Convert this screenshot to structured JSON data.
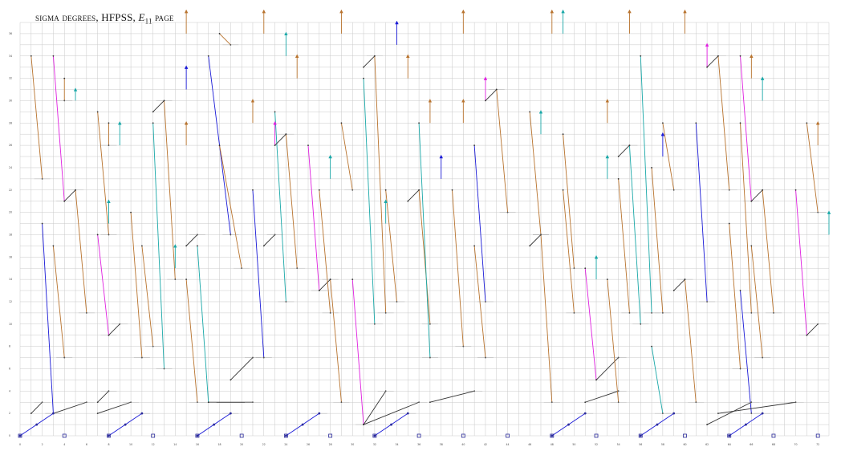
{
  "title": {
    "prefix": "sigma degrees, HFPSS, ",
    "symbol": "E",
    "subscript": "11",
    "suffix": " page"
  },
  "chart_data": {
    "type": "scatter",
    "xlim": [
      0,
      73
    ],
    "ylim": [
      0,
      37
    ],
    "grid": true,
    "x_ticks": [
      0,
      2,
      4,
      6,
      8,
      10,
      12,
      14,
      16,
      18,
      20,
      22,
      24,
      26,
      28,
      30,
      32,
      34,
      36,
      38,
      40,
      42,
      44,
      46,
      48,
      50,
      52,
      54,
      56,
      58,
      60,
      62,
      64,
      66,
      68,
      70,
      72
    ],
    "y_ticks": [
      0,
      2,
      4,
      6,
      8,
      10,
      12,
      14,
      16,
      18,
      20,
      22,
      24,
      26,
      28,
      30,
      32,
      34,
      36
    ],
    "colors": {
      "orange": "#b8732e",
      "blue": "#1a1ad6",
      "teal": "#1aa8a8",
      "magenta": "#e020e0",
      "black": "#333333",
      "grid": "#c9c9c9",
      "dot": "#2a2a9a"
    },
    "segments": [
      {
        "c": "orange",
        "x1": 1,
        "y1": 34,
        "x2": 2,
        "y2": 23
      },
      {
        "c": "orange",
        "x1": 4,
        "y1": 32,
        "x2": 4,
        "y2": 30
      },
      {
        "c": "teal",
        "x1": 5,
        "y1": 30,
        "x2": 5,
        "y2": 31,
        "arrow": true
      },
      {
        "c": "magenta",
        "x1": 3,
        "y1": 34,
        "x2": 4,
        "y2": 21
      },
      {
        "c": "black",
        "x1": 4,
        "y1": 21,
        "x2": 5,
        "y2": 22
      },
      {
        "c": "orange",
        "x1": 5,
        "y1": 22,
        "x2": 6,
        "y2": 11
      },
      {
        "c": "blue",
        "x1": 2,
        "y1": 19,
        "x2": 3,
        "y2": 2
      },
      {
        "c": "orange",
        "x1": 3,
        "y1": 17,
        "x2": 4,
        "y2": 7
      },
      {
        "c": "black",
        "x1": 1,
        "y1": 2,
        "x2": 2,
        "y2": 3
      },
      {
        "c": "black",
        "x1": 3,
        "y1": 2,
        "x2": 6,
        "y2": 3
      },
      {
        "c": "orange",
        "x1": 7,
        "y1": 29,
        "x2": 8,
        "y2": 18
      },
      {
        "c": "orange",
        "x1": 8,
        "y1": 28,
        "x2": 8,
        "y2": 26
      },
      {
        "c": "teal",
        "x1": 9,
        "y1": 26,
        "x2": 9,
        "y2": 28,
        "arrow": true
      },
      {
        "c": "magenta",
        "x1": 7,
        "y1": 18,
        "x2": 8,
        "y2": 9
      },
      {
        "c": "black",
        "x1": 8,
        "y1": 9,
        "x2": 9,
        "y2": 10
      },
      {
        "c": "teal",
        "x1": 8,
        "y1": 19,
        "x2": 8,
        "y2": 21,
        "arrow": true
      },
      {
        "c": "black",
        "x1": 7,
        "y1": 2,
        "x2": 10,
        "y2": 3
      },
      {
        "c": "black",
        "x1": 7,
        "y1": 3,
        "x2": 8,
        "y2": 4
      },
      {
        "c": "orange",
        "x1": 10,
        "y1": 20,
        "x2": 11,
        "y2": 7
      },
      {
        "c": "orange",
        "x1": 11,
        "y1": 17,
        "x2": 12,
        "y2": 8
      },
      {
        "c": "teal",
        "x1": 12,
        "y1": 28,
        "x2": 13,
        "y2": 6
      },
      {
        "c": "black",
        "x1": 12,
        "y1": 29,
        "x2": 13,
        "y2": 30
      },
      {
        "c": "orange",
        "x1": 13,
        "y1": 30,
        "x2": 14,
        "y2": 14
      },
      {
        "c": "teal",
        "x1": 14,
        "y1": 15,
        "x2": 14,
        "y2": 17,
        "arrow": true
      },
      {
        "c": "orange",
        "x1": 15,
        "y1": 26,
        "x2": 15,
        "y2": 28,
        "arrow": true
      },
      {
        "c": "orange",
        "x1": 15,
        "y1": 36,
        "x2": 15,
        "y2": 38,
        "arrow": true
      },
      {
        "c": "blue",
        "x1": 15,
        "y1": 31,
        "x2": 15,
        "y2": 33,
        "arrow": true
      },
      {
        "c": "orange",
        "x1": 15,
        "y1": 14,
        "x2": 16,
        "y2": 3
      },
      {
        "c": "black",
        "x1": 15,
        "y1": 17,
        "x2": 16,
        "y2": 18
      },
      {
        "c": "teal",
        "x1": 16,
        "y1": 17,
        "x2": 17,
        "y2": 3
      },
      {
        "c": "blue",
        "x1": 17,
        "y1": 34,
        "x2": 19,
        "y2": 18
      },
      {
        "c": "orange",
        "x1": 18,
        "y1": 36,
        "x2": 19,
        "y2": 35
      },
      {
        "c": "orange",
        "x1": 18,
        "y1": 26,
        "x2": 20,
        "y2": 15
      },
      {
        "c": "black",
        "x1": 19,
        "y1": 5,
        "x2": 21,
        "y2": 7
      },
      {
        "c": "black",
        "x1": 17,
        "y1": 3,
        "x2": 21,
        "y2": 3
      },
      {
        "c": "orange",
        "x1": 21,
        "y1": 28,
        "x2": 21,
        "y2": 30,
        "arrow": true
      },
      {
        "c": "orange",
        "x1": 22,
        "y1": 36,
        "x2": 22,
        "y2": 38,
        "arrow": true
      },
      {
        "c": "blue",
        "x1": 21,
        "y1": 22,
        "x2": 22,
        "y2": 7
      },
      {
        "c": "black",
        "x1": 22,
        "y1": 17,
        "x2": 23,
        "y2": 18
      },
      {
        "c": "teal",
        "x1": 23,
        "y1": 29,
        "x2": 24,
        "y2": 12
      },
      {
        "c": "teal",
        "x1": 24,
        "y1": 34,
        "x2": 24,
        "y2": 36,
        "arrow": true
      },
      {
        "c": "magenta",
        "x1": 23,
        "y1": 26,
        "x2": 23,
        "y2": 28,
        "arrow": true
      },
      {
        "c": "black",
        "x1": 23,
        "y1": 26,
        "x2": 24,
        "y2": 27
      },
      {
        "c": "orange",
        "x1": 24,
        "y1": 27,
        "x2": 25,
        "y2": 15
      },
      {
        "c": "orange",
        "x1": 25,
        "y1": 32,
        "x2": 25,
        "y2": 34,
        "arrow": true
      },
      {
        "c": "magenta",
        "x1": 26,
        "y1": 26,
        "x2": 27,
        "y2": 13
      },
      {
        "c": "black",
        "x1": 27,
        "y1": 13,
        "x2": 28,
        "y2": 14
      },
      {
        "c": "orange",
        "x1": 28,
        "y1": 14,
        "x2": 29,
        "y2": 3
      },
      {
        "c": "orange",
        "x1": 27,
        "y1": 22,
        "x2": 28,
        "y2": 11
      },
      {
        "c": "teal",
        "x1": 28,
        "y1": 23,
        "x2": 28,
        "y2": 25,
        "arrow": true
      },
      {
        "c": "orange",
        "x1": 29,
        "y1": 36,
        "x2": 29,
        "y2": 38,
        "arrow": true
      },
      {
        "c": "orange",
        "x1": 29,
        "y1": 28,
        "x2": 30,
        "y2": 22
      },
      {
        "c": "magenta",
        "x1": 30,
        "y1": 14,
        "x2": 31,
        "y2": 1
      },
      {
        "c": "black",
        "x1": 31,
        "y1": 1,
        "x2": 33,
        "y2": 4
      },
      {
        "c": "black",
        "x1": 31,
        "y1": 1,
        "x2": 36,
        "y2": 3
      },
      {
        "c": "teal",
        "x1": 31,
        "y1": 32,
        "x2": 32,
        "y2": 10
      },
      {
        "c": "black",
        "x1": 31,
        "y1": 33,
        "x2": 32,
        "y2": 34
      },
      {
        "c": "orange",
        "x1": 32,
        "y1": 34,
        "x2": 33,
        "y2": 11
      },
      {
        "c": "blue",
        "x1": 34,
        "y1": 35,
        "x2": 34,
        "y2": 37,
        "arrow": true
      },
      {
        "c": "orange",
        "x1": 33,
        "y1": 22,
        "x2": 34,
        "y2": 12
      },
      {
        "c": "teal",
        "x1": 33,
        "y1": 19,
        "x2": 33,
        "y2": 21,
        "arrow": true
      },
      {
        "c": "black",
        "x1": 35,
        "y1": 21,
        "x2": 36,
        "y2": 22
      },
      {
        "c": "orange",
        "x1": 36,
        "y1": 22,
        "x2": 37,
        "y2": 10
      },
      {
        "c": "teal",
        "x1": 36,
        "y1": 28,
        "x2": 37,
        "y2": 7
      },
      {
        "c": "blue",
        "x1": 38,
        "y1": 23,
        "x2": 38,
        "y2": 25,
        "arrow": true
      },
      {
        "c": "orange",
        "x1": 35,
        "y1": 32,
        "x2": 35,
        "y2": 34,
        "arrow": true
      },
      {
        "c": "orange",
        "x1": 37,
        "y1": 28,
        "x2": 37,
        "y2": 30,
        "arrow": true
      },
      {
        "c": "black",
        "x1": 37,
        "y1": 3,
        "x2": 41,
        "y2": 4
      },
      {
        "c": "orange",
        "x1": 39,
        "y1": 22,
        "x2": 40,
        "y2": 8
      },
      {
        "c": "orange",
        "x1": 40,
        "y1": 28,
        "x2": 40,
        "y2": 30,
        "arrow": true
      },
      {
        "c": "orange",
        "x1": 40,
        "y1": 36,
        "x2": 40,
        "y2": 38,
        "arrow": true
      },
      {
        "c": "blue",
        "x1": 41,
        "y1": 26,
        "x2": 42,
        "y2": 12
      },
      {
        "c": "orange",
        "x1": 41,
        "y1": 17,
        "x2": 42,
        "y2": 7
      },
      {
        "c": "magenta",
        "x1": 42,
        "y1": 30,
        "x2": 42,
        "y2": 32,
        "arrow": true
      },
      {
        "c": "black",
        "x1": 42,
        "y1": 30,
        "x2": 43,
        "y2": 31
      },
      {
        "c": "orange",
        "x1": 43,
        "y1": 31,
        "x2": 44,
        "y2": 20
      },
      {
        "c": "black",
        "x1": 46,
        "y1": 17,
        "x2": 47,
        "y2": 18
      },
      {
        "c": "orange",
        "x1": 47,
        "y1": 18,
        "x2": 48,
        "y2": 3
      },
      {
        "c": "orange",
        "x1": 46,
        "y1": 29,
        "x2": 47,
        "y2": 18
      },
      {
        "c": "teal",
        "x1": 47,
        "y1": 27,
        "x2": 47,
        "y2": 29,
        "arrow": true
      },
      {
        "c": "orange",
        "x1": 48,
        "y1": 36,
        "x2": 48,
        "y2": 38,
        "arrow": true
      },
      {
        "c": "teal",
        "x1": 49,
        "y1": 36,
        "x2": 49,
        "y2": 38,
        "arrow": true
      },
      {
        "c": "orange",
        "x1": 49,
        "y1": 22,
        "x2": 50,
        "y2": 11
      },
      {
        "c": "orange",
        "x1": 49,
        "y1": 27,
        "x2": 50,
        "y2": 15
      },
      {
        "c": "teal",
        "x1": 52,
        "y1": 14,
        "x2": 52,
        "y2": 16,
        "arrow": true
      },
      {
        "c": "magenta",
        "x1": 51,
        "y1": 15,
        "x2": 52,
        "y2": 5
      },
      {
        "c": "black",
        "x1": 52,
        "y1": 5,
        "x2": 54,
        "y2": 7
      },
      {
        "c": "black",
        "x1": 51,
        "y1": 3,
        "x2": 54,
        "y2": 4
      },
      {
        "c": "orange",
        "x1": 53,
        "y1": 28,
        "x2": 53,
        "y2": 30,
        "arrow": true
      },
      {
        "c": "orange",
        "x1": 53,
        "y1": 14,
        "x2": 54,
        "y2": 3
      },
      {
        "c": "teal",
        "x1": 53,
        "y1": 23,
        "x2": 53,
        "y2": 25,
        "arrow": true
      },
      {
        "c": "orange",
        "x1": 54,
        "y1": 23,
        "x2": 55,
        "y2": 11
      },
      {
        "c": "black",
        "x1": 54,
        "y1": 25,
        "x2": 55,
        "y2": 26
      },
      {
        "c": "teal",
        "x1": 55,
        "y1": 26,
        "x2": 56,
        "y2": 10
      },
      {
        "c": "orange",
        "x1": 55,
        "y1": 36,
        "x2": 55,
        "y2": 38,
        "arrow": true
      },
      {
        "c": "teal",
        "x1": 56,
        "y1": 34,
        "x2": 57,
        "y2": 11
      },
      {
        "c": "orange",
        "x1": 57,
        "y1": 24,
        "x2": 58,
        "y2": 11
      },
      {
        "c": "blue",
        "x1": 58,
        "y1": 25,
        "x2": 58,
        "y2": 27,
        "arrow": true
      },
      {
        "c": "teal",
        "x1": 57,
        "y1": 8,
        "x2": 58,
        "y2": 2
      },
      {
        "c": "orange",
        "x1": 58,
        "y1": 28,
        "x2": 59,
        "y2": 22
      },
      {
        "c": "orange",
        "x1": 60,
        "y1": 36,
        "x2": 60,
        "y2": 38,
        "arrow": true
      },
      {
        "c": "black",
        "x1": 59,
        "y1": 13,
        "x2": 60,
        "y2": 14
      },
      {
        "c": "orange",
        "x1": 60,
        "y1": 14,
        "x2": 61,
        "y2": 3
      },
      {
        "c": "blue",
        "x1": 61,
        "y1": 28,
        "x2": 62,
        "y2": 12
      },
      {
        "c": "magenta",
        "x1": 62,
        "y1": 33,
        "x2": 62,
        "y2": 35,
        "arrow": true
      },
      {
        "c": "black",
        "x1": 62,
        "y1": 33,
        "x2": 63,
        "y2": 34
      },
      {
        "c": "magenta",
        "x1": 65,
        "y1": 34,
        "x2": 66,
        "y2": 21
      },
      {
        "c": "black",
        "x1": 66,
        "y1": 21,
        "x2": 67,
        "y2": 22
      },
      {
        "c": "orange",
        "x1": 64,
        "y1": 19,
        "x2": 65,
        "y2": 6
      },
      {
        "c": "orange",
        "x1": 63,
        "y1": 34,
        "x2": 64,
        "y2": 22
      },
      {
        "c": "orange",
        "x1": 65,
        "y1": 28,
        "x2": 66,
        "y2": 11
      },
      {
        "c": "teal",
        "x1": 67,
        "y1": 30,
        "x2": 67,
        "y2": 32,
        "arrow": true
      },
      {
        "c": "orange",
        "x1": 66,
        "y1": 32,
        "x2": 66,
        "y2": 34,
        "arrow": true
      },
      {
        "c": "orange",
        "x1": 67,
        "y1": 22,
        "x2": 68,
        "y2": 11
      },
      {
        "c": "blue",
        "x1": 65,
        "y1": 13,
        "x2": 66,
        "y2": 2
      },
      {
        "c": "orange",
        "x1": 66,
        "y1": 17,
        "x2": 67,
        "y2": 7
      },
      {
        "c": "black",
        "x1": 62,
        "y1": 1,
        "x2": 66,
        "y2": 3
      },
      {
        "c": "black",
        "x1": 63,
        "y1": 2,
        "x2": 70,
        "y2": 3
      },
      {
        "c": "magenta",
        "x1": 70,
        "y1": 22,
        "x2": 71,
        "y2": 9
      },
      {
        "c": "black",
        "x1": 71,
        "y1": 9,
        "x2": 72,
        "y2": 10
      },
      {
        "c": "orange",
        "x1": 71,
        "y1": 28,
        "x2": 72,
        "y2": 20
      },
      {
        "c": "orange",
        "x1": 72,
        "y1": 26,
        "x2": 72,
        "y2": 28,
        "arrow": true
      },
      {
        "c": "teal",
        "x1": 73,
        "y1": 18,
        "x2": 73,
        "y2": 20,
        "arrow": true
      },
      {
        "c": "blue",
        "x1": 0,
        "y1": 0,
        "x2": 3,
        "y2": 2
      },
      {
        "c": "blue",
        "x1": 8,
        "y1": 0,
        "x2": 11,
        "y2": 2
      },
      {
        "c": "blue",
        "x1": 16,
        "y1": 0,
        "x2": 19,
        "y2": 2
      },
      {
        "c": "blue",
        "x1": 24,
        "y1": 0,
        "x2": 27,
        "y2": 2
      },
      {
        "c": "blue",
        "x1": 32,
        "y1": 0,
        "x2": 35,
        "y2": 2
      },
      {
        "c": "blue",
        "x1": 48,
        "y1": 0,
        "x2": 51,
        "y2": 2
      },
      {
        "c": "blue",
        "x1": 56,
        "y1": 0,
        "x2": 59,
        "y2": 2
      },
      {
        "c": "blue",
        "x1": 64,
        "y1": 0,
        "x2": 67,
        "y2": 2
      }
    ],
    "boxes": [
      {
        "x": 0,
        "y": 0
      },
      {
        "x": 4,
        "y": 0
      },
      {
        "x": 8,
        "y": 0
      },
      {
        "x": 12,
        "y": 0
      },
      {
        "x": 16,
        "y": 0
      },
      {
        "x": 20,
        "y": 0
      },
      {
        "x": 24,
        "y": 0
      },
      {
        "x": 28,
        "y": 0
      },
      {
        "x": 32,
        "y": 0
      },
      {
        "x": 36,
        "y": 0
      },
      {
        "x": 40,
        "y": 0
      },
      {
        "x": 44,
        "y": 0
      },
      {
        "x": 48,
        "y": 0
      },
      {
        "x": 52,
        "y": 0
      },
      {
        "x": 56,
        "y": 0
      },
      {
        "x": 60,
        "y": 0
      },
      {
        "x": 64,
        "y": 0
      },
      {
        "x": 68,
        "y": 0
      },
      {
        "x": 72,
        "y": 0
      }
    ]
  }
}
